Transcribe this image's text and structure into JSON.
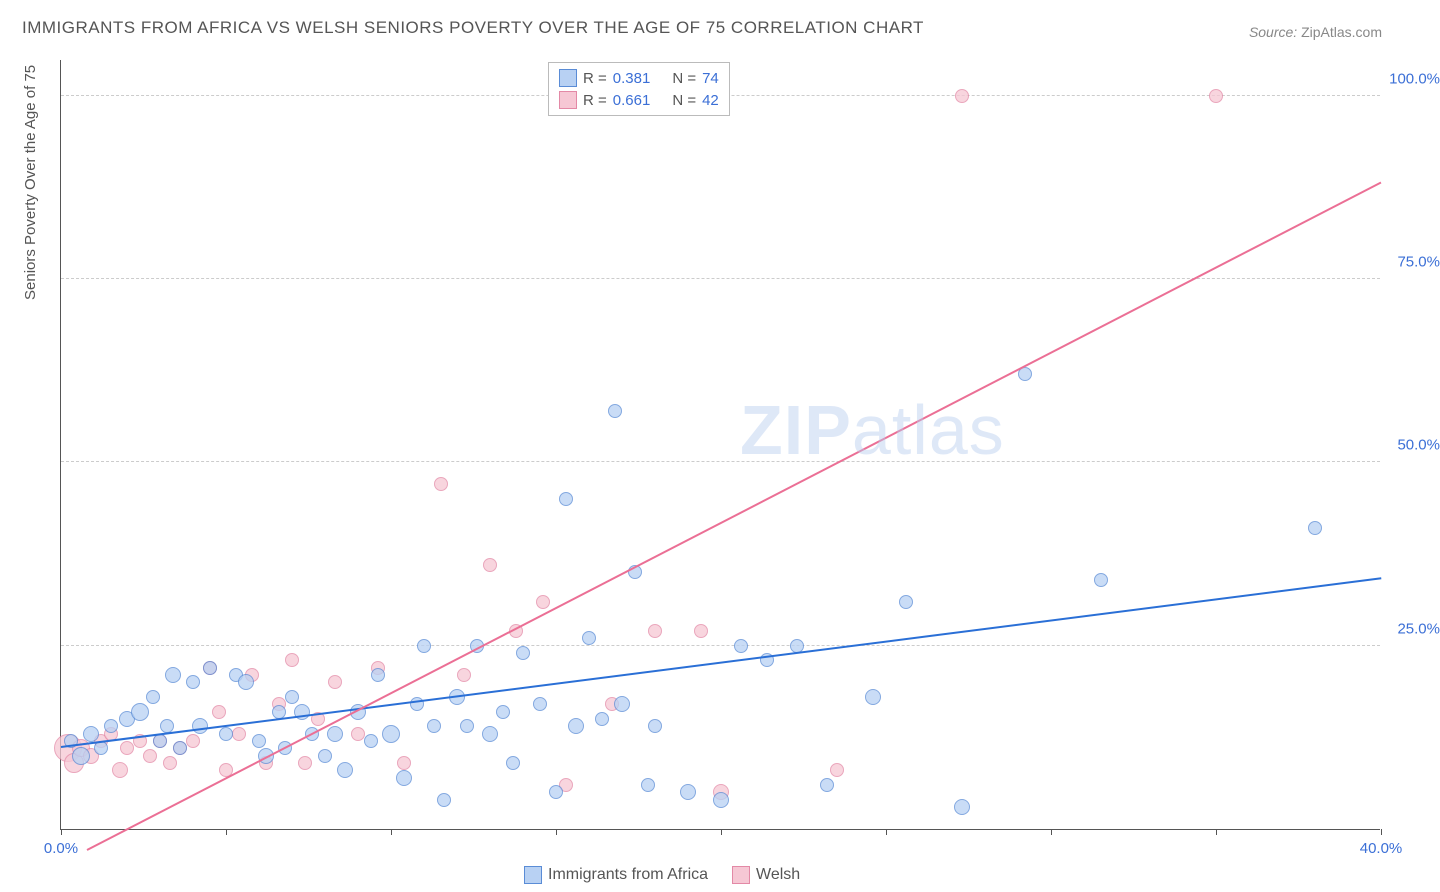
{
  "title": "IMMIGRANTS FROM AFRICA VS WELSH SENIORS POVERTY OVER THE AGE OF 75 CORRELATION CHART",
  "source_label": "Source:",
  "source_name": "ZipAtlas.com",
  "yaxis_label": "Seniors Poverty Over the Age of 75",
  "watermark_a": "ZIP",
  "watermark_b": "atlas",
  "chart": {
    "type": "scatter",
    "xlim": [
      0,
      40
    ],
    "ylim": [
      0,
      105
    ],
    "xticks": [
      0,
      5,
      10,
      15,
      20,
      25,
      30,
      35,
      40
    ],
    "xtick_labels": {
      "0": "0.0%",
      "40": "40.0%"
    },
    "yticks": [
      25,
      50,
      75,
      100
    ],
    "ytick_labels": {
      "25": "25.0%",
      "50": "50.0%",
      "75": "75.0%",
      "100": "100.0%"
    },
    "background_color": "#ffffff",
    "grid_color": "#cccccc",
    "axis_color": "#555555",
    "tick_label_color": "#3b6fd6",
    "series": [
      {
        "name": "Immigrants from Africa",
        "fill": "#b8d1f3",
        "stroke": "#5a8cd6",
        "trend_color": "#2a6fd6",
        "r_value": "0.381",
        "n_value": "74",
        "trend": {
          "x1": 0,
          "y1": 11,
          "x2": 40,
          "y2": 34
        },
        "points": [
          [
            0.3,
            12,
            7
          ],
          [
            0.6,
            10,
            9
          ],
          [
            0.9,
            13,
            8
          ],
          [
            1.2,
            11,
            7
          ],
          [
            1.5,
            14,
            7
          ],
          [
            2,
            15,
            8
          ],
          [
            2.4,
            16,
            9
          ],
          [
            2.8,
            18,
            7
          ],
          [
            3,
            12,
            7
          ],
          [
            3.2,
            14,
            7
          ],
          [
            3.4,
            21,
            8
          ],
          [
            3.6,
            11,
            7
          ],
          [
            4,
            20,
            7
          ],
          [
            4.2,
            14,
            8
          ],
          [
            4.5,
            22,
            7
          ],
          [
            5,
            13,
            7
          ],
          [
            5.3,
            21,
            7
          ],
          [
            5.6,
            20,
            8
          ],
          [
            6,
            12,
            7
          ],
          [
            6.2,
            10,
            8
          ],
          [
            6.6,
            16,
            7
          ],
          [
            6.8,
            11,
            7
          ],
          [
            7,
            18,
            7
          ],
          [
            7.3,
            16,
            8
          ],
          [
            7.6,
            13,
            7
          ],
          [
            8,
            10,
            7
          ],
          [
            8.3,
            13,
            8
          ],
          [
            8.6,
            8,
            8
          ],
          [
            9,
            16,
            8
          ],
          [
            9.4,
            12,
            7
          ],
          [
            9.6,
            21,
            7
          ],
          [
            10,
            13,
            9
          ],
          [
            10.4,
            7,
            8
          ],
          [
            10.8,
            17,
            7
          ],
          [
            11,
            25,
            7
          ],
          [
            11.3,
            14,
            7
          ],
          [
            11.6,
            4,
            7
          ],
          [
            12,
            18,
            8
          ],
          [
            12.3,
            14,
            7
          ],
          [
            12.6,
            25,
            7
          ],
          [
            13,
            13,
            8
          ],
          [
            13.4,
            16,
            7
          ],
          [
            13.7,
            9,
            7
          ],
          [
            14,
            24,
            7
          ],
          [
            14.5,
            17,
            7
          ],
          [
            15,
            5,
            7
          ],
          [
            15.3,
            45,
            7
          ],
          [
            15.6,
            14,
            8
          ],
          [
            16,
            26,
            7
          ],
          [
            16.4,
            15,
            7
          ],
          [
            16.8,
            57,
            7
          ],
          [
            17,
            17,
            8
          ],
          [
            17.4,
            35,
            7
          ],
          [
            17.8,
            6,
            7
          ],
          [
            18,
            14,
            7
          ],
          [
            19,
            5,
            8
          ],
          [
            20,
            4,
            8
          ],
          [
            20.6,
            25,
            7
          ],
          [
            21.4,
            23,
            7
          ],
          [
            22.3,
            25,
            7
          ],
          [
            23.2,
            6,
            7
          ],
          [
            24.6,
            18,
            8
          ],
          [
            25.6,
            31,
            7
          ],
          [
            27.3,
            3,
            8
          ],
          [
            29.2,
            62,
            7
          ],
          [
            31.5,
            34,
            7
          ],
          [
            38,
            41,
            7
          ]
        ]
      },
      {
        "name": "Welsh",
        "fill": "#f6c7d4",
        "stroke": "#e389a6",
        "trend_color": "#eb6f95",
        "r_value": "0.661",
        "n_value": "42",
        "trend": {
          "x1": 0.8,
          "y1": -3,
          "x2": 40,
          "y2": 88
        },
        "points": [
          [
            0.2,
            11,
            14
          ],
          [
            0.4,
            9,
            10
          ],
          [
            0.6,
            11,
            9
          ],
          [
            0.9,
            10,
            8
          ],
          [
            1.2,
            12,
            7
          ],
          [
            1.5,
            13,
            7
          ],
          [
            1.8,
            8,
            8
          ],
          [
            2,
            11,
            7
          ],
          [
            2.4,
            12,
            7
          ],
          [
            2.7,
            10,
            7
          ],
          [
            3,
            12,
            7
          ],
          [
            3.3,
            9,
            7
          ],
          [
            3.6,
            11,
            7
          ],
          [
            4,
            12,
            7
          ],
          [
            4.5,
            22,
            7
          ],
          [
            4.8,
            16,
            7
          ],
          [
            5,
            8,
            7
          ],
          [
            5.4,
            13,
            7
          ],
          [
            5.8,
            21,
            7
          ],
          [
            6.2,
            9,
            7
          ],
          [
            6.6,
            17,
            7
          ],
          [
            7,
            23,
            7
          ],
          [
            7.4,
            9,
            7
          ],
          [
            7.8,
            15,
            7
          ],
          [
            8.3,
            20,
            7
          ],
          [
            9,
            13,
            7
          ],
          [
            9.6,
            22,
            7
          ],
          [
            10.4,
            9,
            7
          ],
          [
            11.5,
            47,
            7
          ],
          [
            12.2,
            21,
            7
          ],
          [
            13,
            36,
            7
          ],
          [
            13.8,
            27,
            7
          ],
          [
            14.6,
            31,
            7
          ],
          [
            15.3,
            6,
            7
          ],
          [
            16.7,
            17,
            7
          ],
          [
            18,
            27,
            7
          ],
          [
            19.4,
            27,
            7
          ],
          [
            20,
            5,
            8
          ],
          [
            23.5,
            8,
            7
          ],
          [
            27.3,
            100,
            7
          ],
          [
            35,
            100,
            7
          ]
        ]
      }
    ]
  },
  "legend_stats": {
    "r_label": "R =",
    "n_label": "N ="
  }
}
